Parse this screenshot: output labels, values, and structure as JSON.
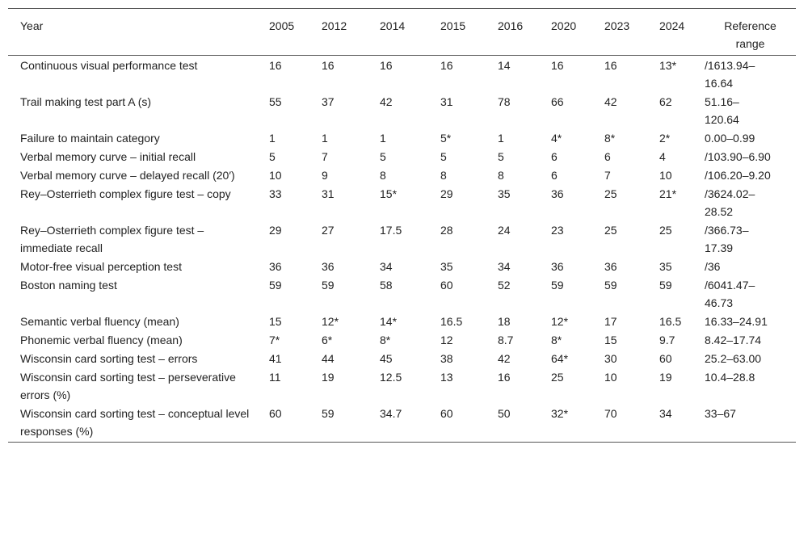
{
  "table": {
    "header": [
      "Year",
      "2005",
      "2012",
      "2014",
      "2015",
      "2016",
      "2020",
      "2023",
      "2024",
      "Reference range"
    ],
    "rows": [
      [
        "Continuous visual performance test",
        "16",
        "16",
        "16",
        "16",
        "14",
        "16",
        "16",
        "13*",
        "/1613.94–16.64"
      ],
      [
        "Trail making test part A (s)",
        "55",
        "37",
        "42",
        "31",
        "78",
        "66",
        "42",
        "62",
        "51.16–120.64"
      ],
      [
        "Failure to maintain category",
        "1",
        "1",
        "1",
        "5*",
        "1",
        "4*",
        "8*",
        "2*",
        "0.00–0.99"
      ],
      [
        "Verbal memory curve – initial recall",
        "5",
        "7",
        "5",
        "5",
        "5",
        "6",
        "6",
        "4",
        "/103.90–6.90"
      ],
      [
        "Verbal memory curve – delayed recall (20′)",
        "10",
        "9",
        "8",
        "8",
        "8",
        "6",
        "7",
        "10",
        "/106.20–9.20"
      ],
      [
        "Rey–Osterrieth complex figure test – copy",
        "33",
        "31",
        "15*",
        "29",
        "35",
        "36",
        "25",
        "21*",
        "/3624.02–28.52"
      ],
      [
        "Rey–Osterrieth complex figure test – immediate recall",
        "29",
        "27",
        "17.5",
        "28",
        "24",
        "23",
        "25",
        "25",
        "/366.73–17.39"
      ],
      [
        "Motor-free visual perception test",
        "36",
        "36",
        "34",
        "35",
        "34",
        "36",
        "36",
        "35",
        "/36"
      ],
      [
        "Boston naming test",
        "59",
        "59",
        "58",
        "60",
        "52",
        "59",
        "59",
        "59",
        "/6041.47–46.73"
      ],
      [
        "Semantic verbal fluency (mean)",
        "15",
        "12*",
        "14*",
        "16.5",
        "18",
        "12*",
        "17",
        "16.5",
        "16.33–24.91"
      ],
      [
        "Phonemic verbal fluency (mean)",
        "7*",
        "6*",
        "8*",
        "12",
        "8.7",
        "8*",
        "15",
        "9.7",
        "8.42–17.74"
      ],
      [
        "Wisconsin card sorting test – errors",
        "41",
        "44",
        "45",
        "38",
        "42",
        "64*",
        "30",
        "60",
        "25.2–63.00"
      ],
      [
        "Wisconsin card sorting test – perseverative errors (%)",
        "11",
        "19",
        "12.5",
        "13",
        "16",
        "25",
        "10",
        "19",
        "10.4–28.8"
      ],
      [
        "Wisconsin card sorting test – conceptual level responses (%)",
        "60",
        "59",
        "34.7",
        "60",
        "50",
        "32*",
        "70",
        "34",
        "33–67"
      ]
    ]
  }
}
